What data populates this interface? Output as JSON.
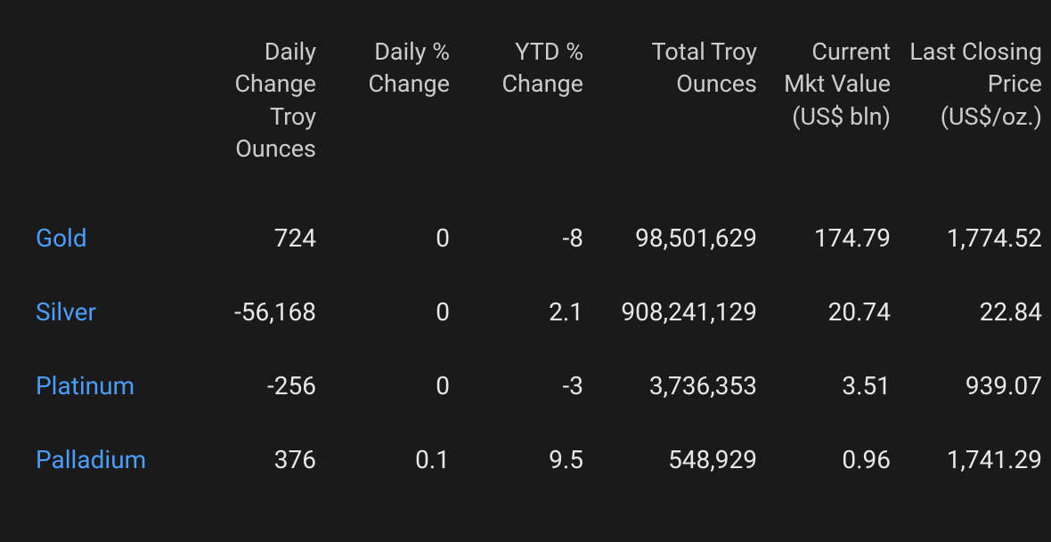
{
  "table": {
    "background_color": "#1a1a1a",
    "text_color": "#e8e8e8",
    "header_color": "#cccccc",
    "link_color": "#4a9eff",
    "header_fontsize": 27,
    "cell_fontsize": 28,
    "columns": [
      {
        "key": "name",
        "label": "",
        "align": "left"
      },
      {
        "key": "daily_change_troy",
        "label": "Daily Change Troy Ounces",
        "align": "right"
      },
      {
        "key": "daily_pct_change",
        "label": "Daily % Change",
        "align": "right"
      },
      {
        "key": "ytd_pct_change",
        "label": "YTD % Change",
        "align": "right"
      },
      {
        "key": "total_troy",
        "label": "Total Troy Ounces",
        "align": "right"
      },
      {
        "key": "current_mkt_value",
        "label": "Current Mkt Value (US$ bln)",
        "align": "right"
      },
      {
        "key": "last_closing_price",
        "label": "Last Closing Price (US$/oz.)",
        "align": "right"
      }
    ],
    "rows": [
      {
        "name": "Gold",
        "daily_change_troy": "724",
        "daily_pct_change": "0",
        "ytd_pct_change": "-8",
        "total_troy": "98,501,629",
        "current_mkt_value": "174.79",
        "last_closing_price": "1,774.52"
      },
      {
        "name": "Silver",
        "daily_change_troy": "-56,168",
        "daily_pct_change": "0",
        "ytd_pct_change": "2.1",
        "total_troy": "908,241,129",
        "current_mkt_value": "20.74",
        "last_closing_price": "22.84"
      },
      {
        "name": "Platinum",
        "daily_change_troy": "-256",
        "daily_pct_change": "0",
        "ytd_pct_change": "-3",
        "total_troy": "3,736,353",
        "current_mkt_value": "3.51",
        "last_closing_price": "939.07"
      },
      {
        "name": "Palladium",
        "daily_change_troy": "376",
        "daily_pct_change": "0.1",
        "ytd_pct_change": "9.5",
        "total_troy": "548,929",
        "current_mkt_value": "0.96",
        "last_closing_price": "1,741.29"
      }
    ]
  }
}
